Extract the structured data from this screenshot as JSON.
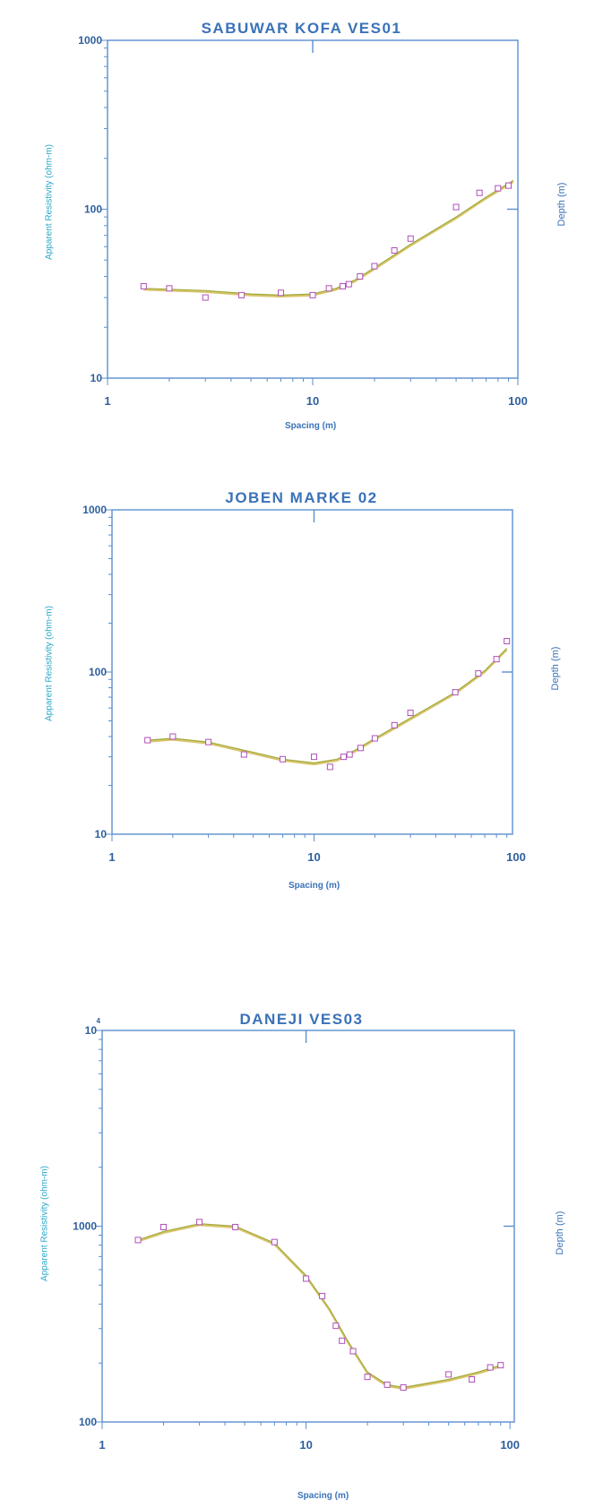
{
  "colors": {
    "axis": "#5b8fd0",
    "title": "#3a72b8",
    "ylabel": "#2aa7c9",
    "marker": "#b04fb8",
    "fit_line": "#a0aa3a",
    "model_line": "#d8c46a"
  },
  "chart_data": [
    {
      "type": "scatter",
      "title": "SABUWAR KOFA VES01",
      "xlabel": "Spacing (m)",
      "ylabel": "Apparent Resistivity (ohm-m)",
      "right_label": "Depth (m)",
      "x_scale": "log",
      "y_scale": "log",
      "xlim": [
        1,
        100
      ],
      "ylim": [
        10,
        1000
      ],
      "x_ticks": [
        "1",
        "10",
        "100"
      ],
      "y_ticks": [
        "10",
        "100",
        "1000"
      ],
      "points": [
        [
          1.5,
          35
        ],
        [
          2,
          34
        ],
        [
          3,
          30
        ],
        [
          4.5,
          31
        ],
        [
          7,
          32
        ],
        [
          10,
          31
        ],
        [
          12,
          34
        ],
        [
          14,
          35
        ],
        [
          15,
          36
        ],
        [
          17,
          40
        ],
        [
          20,
          46
        ],
        [
          25,
          57
        ],
        [
          30,
          67
        ],
        [
          50,
          103
        ],
        [
          65,
          125
        ],
        [
          80,
          133
        ],
        [
          90,
          138
        ]
      ],
      "fit": [
        [
          1.5,
          34
        ],
        [
          3,
          33
        ],
        [
          5,
          31.5
        ],
        [
          7,
          31
        ],
        [
          10,
          31.5
        ],
        [
          13,
          34
        ],
        [
          16,
          38
        ],
        [
          20,
          45
        ],
        [
          30,
          62
        ],
        [
          50,
          90
        ],
        [
          70,
          118
        ],
        [
          95,
          148
        ]
      ]
    },
    {
      "type": "scatter",
      "title": "JOBEN MARKE 02",
      "xlabel": "Spacing (m)",
      "ylabel": "Apparent Resistivity (ohm-m)",
      "right_label": "Depth (m)",
      "x_scale": "log",
      "y_scale": "log",
      "xlim": [
        1,
        100
      ],
      "ylim": [
        10,
        1000
      ],
      "x_ticks": [
        "1",
        "10",
        "100"
      ],
      "y_ticks": [
        "10",
        "100",
        "1000"
      ],
      "points": [
        [
          1.5,
          38
        ],
        [
          2,
          40
        ],
        [
          3,
          37
        ],
        [
          4.5,
          31
        ],
        [
          7,
          29
        ],
        [
          10,
          30
        ],
        [
          12,
          26
        ],
        [
          14,
          30
        ],
        [
          15,
          31
        ],
        [
          17,
          34
        ],
        [
          20,
          39
        ],
        [
          25,
          47
        ],
        [
          30,
          56
        ],
        [
          50,
          75
        ],
        [
          65,
          98
        ],
        [
          80,
          120
        ],
        [
          90,
          155
        ]
      ],
      "fit": [
        [
          1.5,
          38
        ],
        [
          2,
          39
        ],
        [
          3,
          37
        ],
        [
          5,
          32
        ],
        [
          7,
          29
        ],
        [
          10,
          27.5
        ],
        [
          13,
          29
        ],
        [
          16,
          33
        ],
        [
          20,
          39
        ],
        [
          30,
          52
        ],
        [
          50,
          75
        ],
        [
          70,
          102
        ],
        [
          90,
          140
        ]
      ]
    },
    {
      "type": "scatter",
      "title": "DANEJI VES03",
      "xlabel": "Spacing (m)",
      "ylabel": "Apparent Resistivity (ohm-m)",
      "right_label": "Depth (m)",
      "x_scale": "log",
      "y_scale": "log",
      "xlim": [
        1,
        100
      ],
      "ylim": [
        100,
        10000
      ],
      "x_ticks": [
        "1",
        "10",
        "100"
      ],
      "y_ticks": [
        "100",
        "1000",
        "10"
      ],
      "y_top_exponent": "4",
      "points": [
        [
          1.5,
          850
        ],
        [
          2,
          990
        ],
        [
          3,
          1050
        ],
        [
          4.5,
          990
        ],
        [
          7,
          830
        ],
        [
          10,
          540
        ],
        [
          12,
          440
        ],
        [
          14,
          310
        ],
        [
          15,
          260
        ],
        [
          17,
          230
        ],
        [
          20,
          170
        ],
        [
          25,
          155
        ],
        [
          30,
          150
        ],
        [
          50,
          175
        ],
        [
          65,
          165
        ],
        [
          80,
          190
        ],
        [
          90,
          195
        ]
      ],
      "fit": [
        [
          1.5,
          850
        ],
        [
          2,
          940
        ],
        [
          3,
          1030
        ],
        [
          4.5,
          1000
        ],
        [
          7,
          820
        ],
        [
          10,
          560
        ],
        [
          13,
          380
        ],
        [
          16,
          260
        ],
        [
          20,
          180
        ],
        [
          25,
          155
        ],
        [
          30,
          150
        ],
        [
          50,
          165
        ],
        [
          70,
          180
        ],
        [
          90,
          195
        ]
      ]
    }
  ]
}
